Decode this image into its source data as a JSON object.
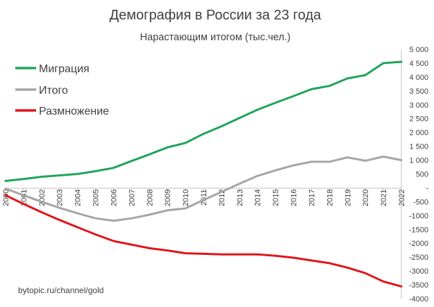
{
  "chart_data": {
    "type": "line",
    "title": "Демография в России за 23 года",
    "subtitle": "Нарастающим итогом (тыс.чел.)",
    "watermark": "bytopic.ru/channel/gold",
    "x": [
      "2000",
      "2001",
      "2002",
      "2003",
      "2004",
      "2005",
      "2006",
      "2007",
      "2008",
      "2009",
      "2010",
      "2011",
      "2012",
      "2013",
      "2014",
      "2015",
      "2016",
      "2017",
      "2018",
      "2019",
      "2020",
      "2021",
      "2022"
    ],
    "ylim": [
      -4000,
      5000
    ],
    "yticks": [
      5000,
      4500,
      4000,
      3500,
      3000,
      2500,
      2000,
      1500,
      1000,
      500,
      0,
      -500,
      -1000,
      -1500,
      -2000,
      -2500,
      -3000,
      -3500,
      -4000
    ],
    "ytick_labels": [
      "5 000",
      "4 500",
      "4 000",
      "3 500",
      "3 000",
      "2 500",
      "2 000",
      "1 500",
      "1 000",
      "500",
      "-",
      "-500",
      "-1000",
      "-1500",
      "-2000",
      "-2500",
      "-3000",
      "-3500",
      "-4000"
    ],
    "grid": false,
    "legend_position": "top-left",
    "series": [
      {
        "name": "Миграция",
        "color": "#1fa45a",
        "values": [
          250,
          320,
          400,
          450,
          500,
          600,
          720,
          970,
          1210,
          1460,
          1620,
          1950,
          2220,
          2520,
          2820,
          3070,
          3310,
          3560,
          3680,
          3950,
          4070,
          4500,
          4550
        ]
      },
      {
        "name": "Итого",
        "color": "#a5a5a5",
        "values": [
          -30,
          -270,
          -500,
          -720,
          -920,
          -1100,
          -1190,
          -1100,
          -970,
          -810,
          -740,
          -440,
          -150,
          150,
          430,
          630,
          810,
          940,
          940,
          1100,
          980,
          1130,
          1000
        ]
      },
      {
        "name": "Размножение",
        "color": "#e1141a",
        "values": [
          -270,
          -580,
          -880,
          -1160,
          -1420,
          -1680,
          -1920,
          -2050,
          -2180,
          -2260,
          -2360,
          -2380,
          -2400,
          -2400,
          -2400,
          -2450,
          -2520,
          -2620,
          -2720,
          -2880,
          -3080,
          -3380,
          -3560
        ]
      }
    ]
  }
}
